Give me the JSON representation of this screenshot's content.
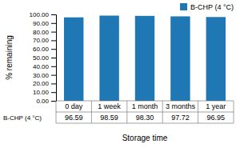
{
  "chart_data": {
    "type": "bar",
    "categories": [
      "0 day",
      "1 week",
      "1 month",
      "3 months",
      "1 year"
    ],
    "series": [
      {
        "name": "B-CHP (4 °C)",
        "values": [
          96.59,
          98.59,
          98.3,
          97.72,
          96.95
        ],
        "value_labels": [
          "96.59",
          "98.59",
          "98.30",
          "97.72",
          "96.95"
        ]
      }
    ],
    "y_label": "% remaining",
    "x_label": "Storage time",
    "ylim": [
      0,
      100
    ],
    "yticks": [
      {
        "value": 0,
        "label": "0.00"
      },
      {
        "value": 10,
        "label": "10.00"
      },
      {
        "value": 20,
        "label": "20.00"
      },
      {
        "value": 30,
        "label": "30.00"
      },
      {
        "value": 40,
        "label": "40.00"
      },
      {
        "value": 50,
        "label": "50.00"
      },
      {
        "value": 60,
        "label": "60.00"
      },
      {
        "value": 70,
        "label": "70.00"
      },
      {
        "value": 80,
        "label": "80.00"
      },
      {
        "value": 90,
        "label": "90.00"
      },
      {
        "value": 100,
        "label": "100.00"
      }
    ],
    "grid": false,
    "legend": "top",
    "data_labels": true
  }
}
